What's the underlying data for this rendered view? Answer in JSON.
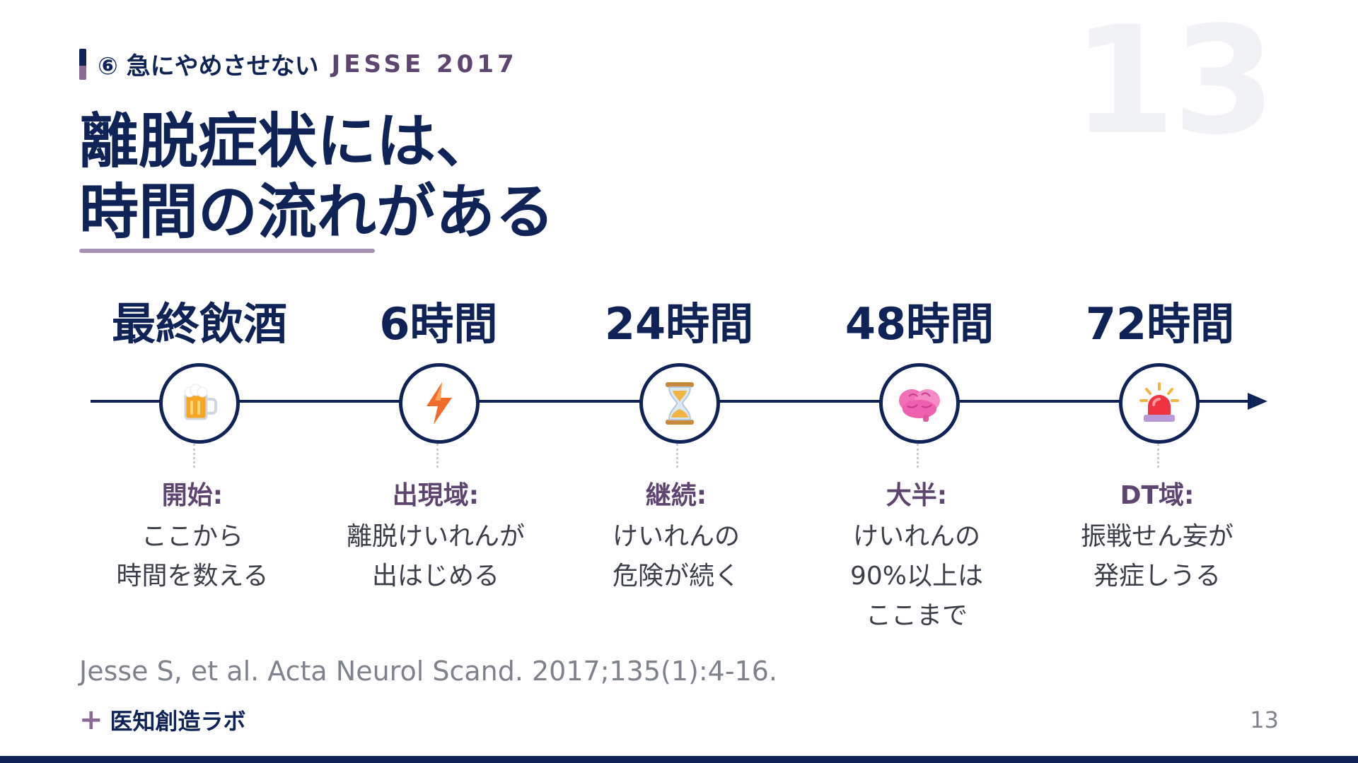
{
  "ghost_number": "13",
  "section": {
    "text": "⑥ 急にやめさせない",
    "cite": "JESSE 2017"
  },
  "title": {
    "line1": "離脱症状には、",
    "line2": "時間の流れがある"
  },
  "timeline": [
    {
      "time": "最終飲酒",
      "icon": "beer-mug-icon",
      "label": "開始:",
      "desc": [
        "ここから",
        "時間を数える"
      ]
    },
    {
      "time": "6時間",
      "icon": "lightning-icon",
      "label": "出現域:",
      "desc": [
        "離脱けいれんが",
        "出はじめる"
      ]
    },
    {
      "time": "24時間",
      "icon": "hourglass-icon",
      "label": "継続:",
      "desc": [
        "けいれんの",
        "危険が続く"
      ]
    },
    {
      "time": "48時間",
      "icon": "brain-icon",
      "label": "大半:",
      "desc": [
        "けいれんの",
        "90%以上は",
        "ここまで"
      ]
    },
    {
      "time": "72時間",
      "icon": "siren-icon",
      "label": "DT域:",
      "desc": [
        "振戦せん妄が",
        "発症しうる"
      ]
    }
  ],
  "citation": "Jesse S, et al. Acta Neurol Scand. 2017;135(1):4-16.",
  "brand": {
    "plus": "+",
    "name": "医知創造ラボ"
  },
  "page_number": "13",
  "colors": {
    "navy": "#0f2356",
    "purple": "#5e4570",
    "lavender": "#a891b3"
  }
}
